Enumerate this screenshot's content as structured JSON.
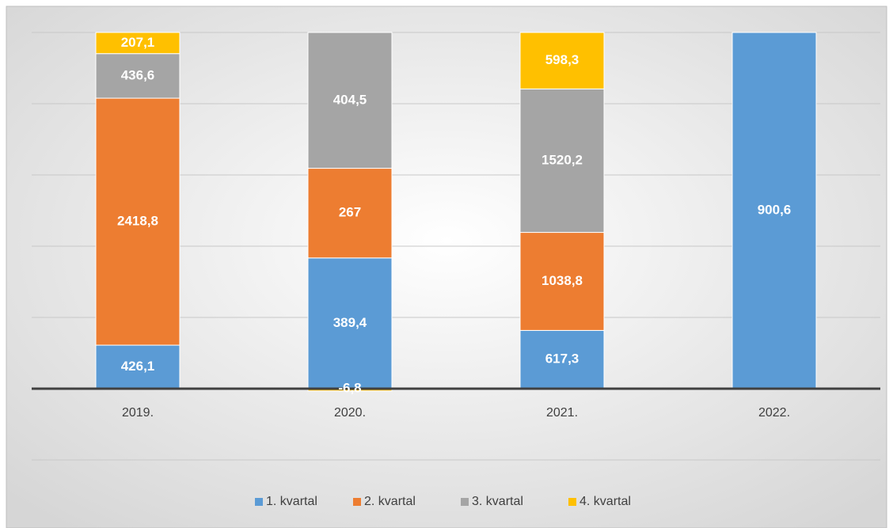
{
  "chart_data": {
    "type": "stacked_percent_bar",
    "categories": [
      "2019.",
      "2020.",
      "2021.",
      "2022."
    ],
    "series": [
      {
        "name": "1. kvartal",
        "color": "#5b9bd5",
        "values": [
          426.1,
          389.4,
          617.3,
          900.6
        ],
        "value_labels": [
          "426,1",
          "389,4",
          "617,3",
          "900,6"
        ]
      },
      {
        "name": "2. kvartal",
        "color": "#ed7d31",
        "values": [
          2418.8,
          267,
          1038.8,
          null
        ],
        "value_labels": [
          "2418,8",
          "267",
          "1038,8",
          null
        ]
      },
      {
        "name": "3. kvartal",
        "color": "#a5a5a5",
        "values": [
          436.6,
          404.5,
          1520.2,
          null
        ],
        "value_labels": [
          "436,6",
          "404,5",
          "1520,2",
          null
        ]
      },
      {
        "name": "4. kvartal",
        "color": "#ffc000",
        "values": [
          207.1,
          -6.8,
          598.3,
          null
        ],
        "value_labels": [
          "207,1",
          "-6,8",
          "598,3",
          null
        ]
      }
    ],
    "ylim": [
      -20,
      100
    ],
    "yticks": [
      -20,
      0,
      20,
      40,
      60,
      80,
      100
    ],
    "grid": true,
    "legend": "bottom"
  }
}
